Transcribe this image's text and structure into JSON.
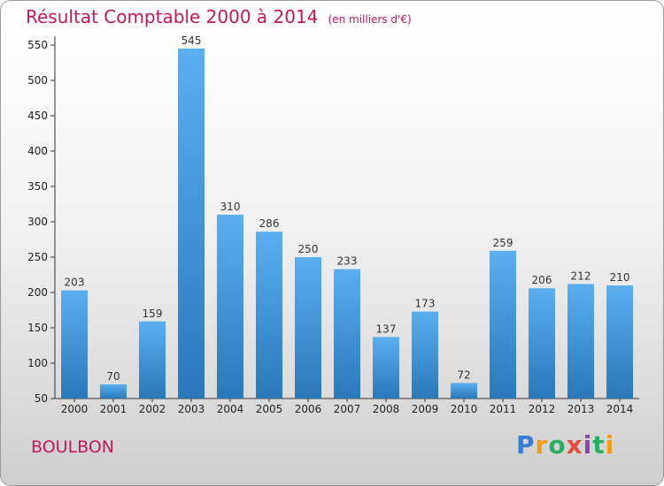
{
  "header": {
    "title": "Résultat Comptable 2000 à 2014",
    "unit": "(en milliers d'€)"
  },
  "commune": "BOULBON",
  "logo": {
    "letters": [
      "P",
      "r",
      "o",
      "x",
      "i",
      "t",
      "i"
    ],
    "colors": [
      "#3a7bd5",
      "#f39c12",
      "#27ae60",
      "#e74c3c",
      "#8e44ad",
      "#27ae60",
      "#f39c12"
    ]
  },
  "colors": {
    "bar_top": "#5aaff0",
    "bar_bottom": "#2a78b8",
    "axis": "#333333",
    "title": "#c2185b"
  },
  "chart_data": {
    "type": "bar",
    "title": "Résultat Comptable 2000 à 2014",
    "unit": "(en milliers d'€)",
    "categories": [
      "2000",
      "2001",
      "2002",
      "2003",
      "2004",
      "2005",
      "2006",
      "2007",
      "2008",
      "2009",
      "2010",
      "2011",
      "2012",
      "2013",
      "2014"
    ],
    "values": [
      203,
      70,
      159,
      545,
      310,
      286,
      250,
      233,
      137,
      173,
      72,
      259,
      206,
      212,
      210
    ],
    "ylim": [
      50,
      550
    ],
    "yticks": [
      50,
      100,
      150,
      200,
      250,
      300,
      350,
      400,
      450,
      500,
      550
    ],
    "grid": false,
    "legend": "none"
  }
}
